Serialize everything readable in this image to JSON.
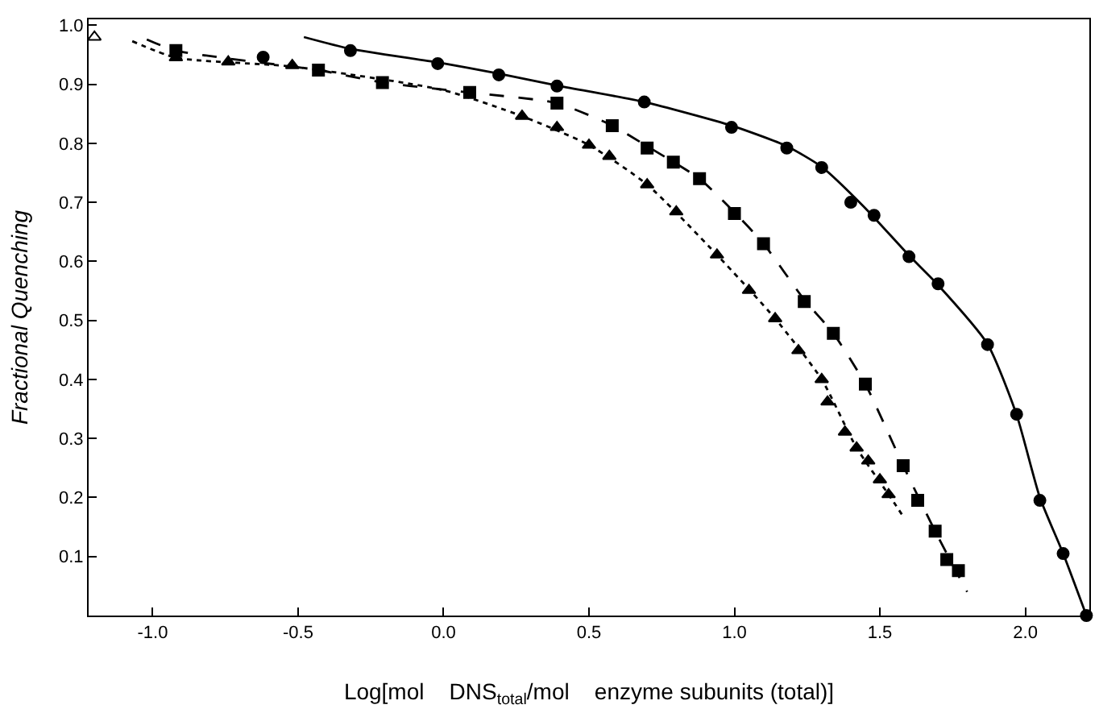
{
  "chart_data": {
    "type": "scatter",
    "xlabel": "Log[mol    DNS$_{total}$/mol    enzyme subunits (total)]",
    "ylabel": "Fractional Quenching",
    "xlim": [
      -1.22,
      2.22
    ],
    "ylim": [
      0,
      1.01
    ],
    "xticks": [
      {
        "value": -1,
        "label": "-1.0"
      },
      -0.5,
      {
        "value": 0,
        "label": "0.0"
      },
      0.5,
      {
        "value": 1,
        "label": "1.0"
      },
      1.5,
      {
        "value": 2,
        "label": "2.0"
      }
    ],
    "yticks": [
      0.1,
      0.2,
      0.3,
      0.4,
      0.5,
      0.6,
      0.7,
      0.8,
      0.9,
      {
        "value": 1,
        "label": "1.0"
      }
    ],
    "series": [
      {
        "marker": "circle",
        "color": "#000000",
        "x": [
          -0.62,
          -0.32,
          -0.02,
          0.19,
          0.39,
          0.69,
          0.99,
          1.18,
          1.3,
          1.4,
          1.48,
          1.6,
          1.7,
          1.87,
          1.97,
          2.05,
          2.13,
          2.21
        ],
        "values": [
          0.946,
          0.957,
          0.935,
          0.916,
          0.897,
          0.87,
          0.827,
          0.792,
          0.759,
          0.7,
          0.678,
          0.608,
          0.562,
          0.459,
          0.341,
          0.195,
          0.105,
          0.0
        ]
      },
      {
        "type": "line",
        "line_style": "solid",
        "color": "#000000",
        "x": [
          -0.48,
          -0.32,
          -0.02,
          0.19,
          0.39,
          0.69,
          0.99,
          1.18,
          1.3,
          1.45,
          1.6,
          1.7,
          1.87,
          1.97,
          2.05,
          2.13,
          2.21
        ],
        "values": [
          0.98,
          0.96,
          0.937,
          0.918,
          0.898,
          0.87,
          0.83,
          0.795,
          0.76,
          0.69,
          0.61,
          0.56,
          0.46,
          0.34,
          0.2,
          0.105,
          0.0
        ]
      },
      {
        "marker": "square",
        "color": "#000000",
        "x": [
          -0.92,
          -0.43,
          -0.21,
          0.09,
          0.39,
          0.58,
          0.7,
          0.79,
          0.88,
          1.0,
          1.1,
          1.24,
          1.34,
          1.45,
          1.58,
          1.63,
          1.69,
          1.73,
          1.77
        ],
        "values": [
          0.957,
          0.924,
          0.903,
          0.886,
          0.868,
          0.83,
          0.792,
          0.768,
          0.74,
          0.681,
          0.63,
          0.532,
          0.478,
          0.392,
          0.254,
          0.195,
          0.143,
          0.095,
          0.076
        ]
      },
      {
        "type": "line",
        "line_style": "dashed",
        "color": "#000000",
        "x": [
          -1.02,
          -0.92,
          -0.43,
          -0.21,
          0.09,
          0.39,
          0.58,
          0.7,
          0.88,
          1.0,
          1.1,
          1.24,
          1.34,
          1.45,
          1.58,
          1.69,
          1.8
        ],
        "values": [
          0.976,
          0.957,
          0.924,
          0.903,
          0.886,
          0.868,
          0.83,
          0.795,
          0.74,
          0.683,
          0.63,
          0.535,
          0.478,
          0.392,
          0.254,
          0.143,
          0.04
        ]
      },
      {
        "marker": "triangle",
        "color": "#000000",
        "x": [
          -0.92,
          -0.74,
          -0.52,
          0.27,
          0.39,
          0.5,
          0.57,
          0.7,
          0.8,
          0.94,
          1.05,
          1.14,
          1.22,
          1.3,
          1.32,
          1.38,
          1.42,
          1.46,
          1.5,
          1.53
        ],
        "values": [
          0.945,
          0.938,
          0.932,
          0.846,
          0.827,
          0.797,
          0.778,
          0.73,
          0.684,
          0.611,
          0.551,
          0.503,
          0.449,
          0.4,
          0.362,
          0.311,
          0.284,
          0.262,
          0.23,
          0.205
        ]
      },
      {
        "type": "line",
        "line_style": "dotted",
        "color": "#000000",
        "x": [
          -1.07,
          -0.92,
          -0.52,
          0.0,
          0.27,
          0.5,
          0.7,
          0.94,
          1.14,
          1.3,
          1.42,
          1.53,
          1.58
        ],
        "values": [
          0.973,
          0.945,
          0.93,
          0.89,
          0.846,
          0.797,
          0.73,
          0.611,
          0.503,
          0.4,
          0.284,
          0.205,
          0.168
        ]
      },
      {
        "marker": "triangle",
        "color": "#ffffff",
        "x": [
          -1.2
        ],
        "values": [
          0.98
        ]
      }
    ]
  }
}
